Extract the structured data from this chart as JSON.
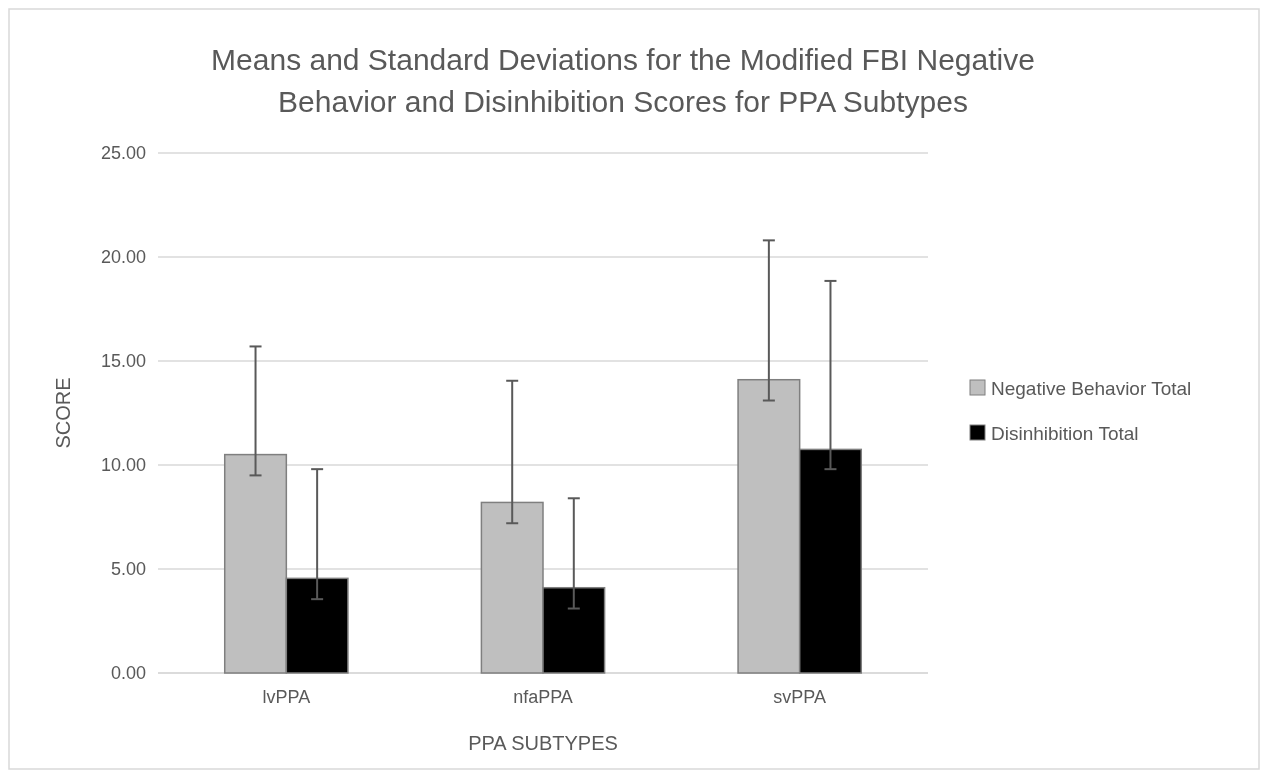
{
  "chart_data": {
    "type": "bar",
    "title": "Means and Standard Deviations for the Modified FBI Negative Behavior and Disinhibition Scores for PPA Subtypes",
    "xlabel": "PPA SUBTYPES",
    "ylabel": "SCORE",
    "categories": [
      "lvPPA",
      "nfaPPA",
      "svPPA"
    ],
    "series": [
      {
        "name": "Negative Behavior Total",
        "color": "#bfbfbf",
        "values": [
          10.5,
          8.2,
          14.1
        ],
        "errors": [
          [
            9.5,
            15.7
          ],
          [
            7.2,
            14.05
          ],
          [
            13.1,
            20.8
          ]
        ]
      },
      {
        "name": "Disinhibition Total",
        "color": "#000000",
        "values": [
          4.55,
          4.1,
          10.75
        ],
        "errors": [
          [
            3.55,
            9.8
          ],
          [
            3.1,
            8.4
          ],
          [
            9.8,
            18.85
          ]
        ]
      }
    ],
    "ylim": [
      0,
      25
    ],
    "yticks": [
      {
        "value": 0,
        "label": "0.00"
      },
      {
        "value": 5,
        "label": "5.00"
      },
      {
        "value": 10,
        "label": "10.00"
      },
      {
        "value": 15,
        "label": "15.00"
      },
      {
        "value": 20,
        "label": "20.00"
      },
      {
        "value": 25,
        "label": "25.00"
      }
    ],
    "grid": "y",
    "legend": "right"
  }
}
